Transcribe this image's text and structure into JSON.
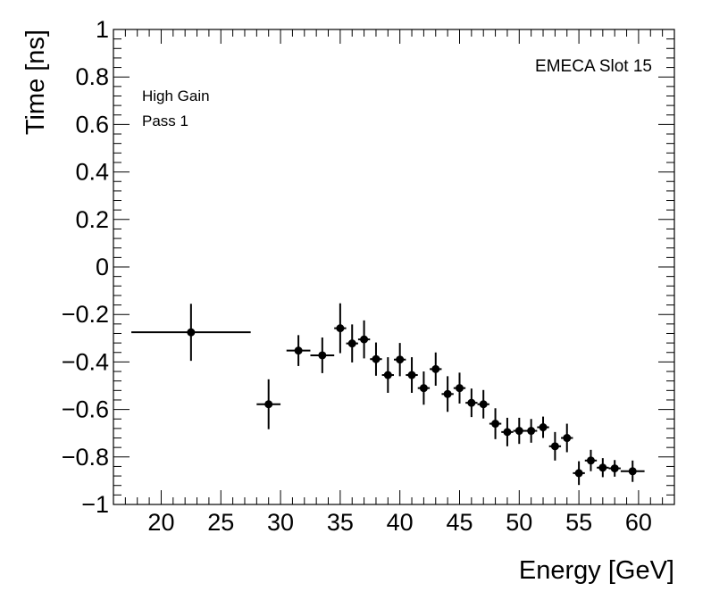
{
  "chart_data": {
    "type": "scatter",
    "title": "",
    "xlabel": "Energy [GeV]",
    "ylabel": "Time [ns]",
    "xlim": [
      16,
      63
    ],
    "ylim": [
      -1,
      1
    ],
    "xticks": [
      20,
      25,
      30,
      35,
      40,
      45,
      50,
      55,
      60
    ],
    "yticks": [
      -1,
      -0.8,
      -0.6,
      -0.4,
      -0.2,
      0,
      0.2,
      0.4,
      0.6,
      0.8,
      1
    ],
    "xtick_labels": [
      "20",
      "25",
      "30",
      "35",
      "40",
      "45",
      "50",
      "55",
      "60"
    ],
    "ytick_labels": [
      "−1",
      "−0.8",
      "−0.6",
      "−0.4",
      "−0.2",
      "0",
      "0.2",
      "0.4",
      "0.6",
      "0.8",
      "1"
    ],
    "annotations": {
      "top_right": "EMECA Slot 15",
      "line1": "High Gain",
      "line2": "Pass 1"
    },
    "grid": false,
    "marker_color": "#000000",
    "points": [
      {
        "x": 22.5,
        "y": -0.275,
        "xerr": 5.0,
        "yerr": 0.12
      },
      {
        "x": 29.0,
        "y": -0.578,
        "xerr": 1.0,
        "yerr": 0.105
      },
      {
        "x": 31.5,
        "y": -0.352,
        "xerr": 1.0,
        "yerr": 0.065
      },
      {
        "x": 33.5,
        "y": -0.372,
        "xerr": 1.0,
        "yerr": 0.075
      },
      {
        "x": 35.0,
        "y": -0.258,
        "xerr": 0.5,
        "yerr": 0.105
      },
      {
        "x": 36.0,
        "y": -0.322,
        "xerr": 0.5,
        "yerr": 0.08
      },
      {
        "x": 37.0,
        "y": -0.305,
        "xerr": 0.5,
        "yerr": 0.08
      },
      {
        "x": 38.0,
        "y": -0.388,
        "xerr": 0.5,
        "yerr": 0.07
      },
      {
        "x": 39.0,
        "y": -0.455,
        "xerr": 0.5,
        "yerr": 0.075
      },
      {
        "x": 40.0,
        "y": -0.39,
        "xerr": 0.5,
        "yerr": 0.07
      },
      {
        "x": 41.0,
        "y": -0.455,
        "xerr": 0.5,
        "yerr": 0.075
      },
      {
        "x": 42.0,
        "y": -0.51,
        "xerr": 0.5,
        "yerr": 0.07
      },
      {
        "x": 43.0,
        "y": -0.43,
        "xerr": 0.5,
        "yerr": 0.07
      },
      {
        "x": 44.0,
        "y": -0.535,
        "xerr": 0.5,
        "yerr": 0.075
      },
      {
        "x": 45.0,
        "y": -0.51,
        "xerr": 0.5,
        "yerr": 0.065
      },
      {
        "x": 46.0,
        "y": -0.572,
        "xerr": 0.5,
        "yerr": 0.06
      },
      {
        "x": 47.0,
        "y": -0.578,
        "xerr": 0.5,
        "yerr": 0.06
      },
      {
        "x": 48.0,
        "y": -0.66,
        "xerr": 0.5,
        "yerr": 0.065
      },
      {
        "x": 49.0,
        "y": -0.695,
        "xerr": 0.5,
        "yerr": 0.06
      },
      {
        "x": 50.0,
        "y": -0.69,
        "xerr": 0.5,
        "yerr": 0.055
      },
      {
        "x": 51.0,
        "y": -0.69,
        "xerr": 0.5,
        "yerr": 0.05
      },
      {
        "x": 52.0,
        "y": -0.675,
        "xerr": 0.5,
        "yerr": 0.045
      },
      {
        "x": 53.0,
        "y": -0.755,
        "xerr": 0.5,
        "yerr": 0.06
      },
      {
        "x": 54.0,
        "y": -0.72,
        "xerr": 0.5,
        "yerr": 0.06
      },
      {
        "x": 55.0,
        "y": -0.868,
        "xerr": 0.5,
        "yerr": 0.05
      },
      {
        "x": 56.0,
        "y": -0.815,
        "xerr": 0.5,
        "yerr": 0.045
      },
      {
        "x": 57.0,
        "y": -0.845,
        "xerr": 0.5,
        "yerr": 0.04
      },
      {
        "x": 58.0,
        "y": -0.848,
        "xerr": 0.5,
        "yerr": 0.035
      },
      {
        "x": 59.5,
        "y": -0.86,
        "xerr": 1.0,
        "yerr": 0.045
      }
    ]
  }
}
